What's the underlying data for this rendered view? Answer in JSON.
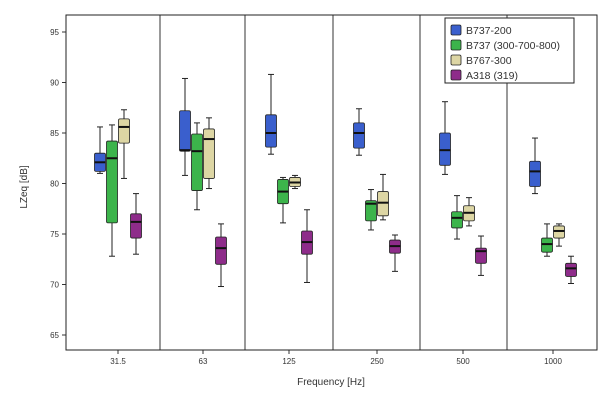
{
  "chart_data": {
    "type": "boxplot",
    "xlabel": "Frequency [Hz]",
    "ylabel": "LZeq [dB]",
    "ylim": [
      63,
      97
    ],
    "yticks": [
      65,
      70,
      75,
      80,
      85,
      90,
      95
    ],
    "categories": [
      "31.5",
      "63",
      "125",
      "250",
      "500",
      "1000"
    ],
    "legend_position": "top-right",
    "grid": false,
    "series": [
      {
        "name": "B737-200",
        "color": "#3a5fcd",
        "boxes": [
          {
            "min": 81.0,
            "q1": 81.2,
            "median": 82.1,
            "q3": 83.0,
            "max": 85.6
          },
          {
            "min": 80.8,
            "q1": 83.2,
            "median": 83.3,
            "q3": 87.2,
            "max": 90.4
          },
          {
            "min": 82.9,
            "q1": 83.6,
            "median": 85.0,
            "q3": 86.8,
            "max": 90.8
          },
          {
            "min": 82.8,
            "q1": 83.5,
            "median": 85.0,
            "q3": 86.0,
            "max": 87.4
          },
          {
            "min": 80.9,
            "q1": 81.8,
            "median": 83.3,
            "q3": 85.0,
            "max": 88.1
          },
          {
            "min": 79.0,
            "q1": 79.7,
            "median": 81.2,
            "q3": 82.2,
            "max": 84.5
          }
        ]
      },
      {
        "name": "B737 (300-700-800)",
        "color": "#3cb44b",
        "boxes": [
          {
            "min": 72.8,
            "q1": 76.1,
            "median": 82.5,
            "q3": 84.2,
            "max": 85.8
          },
          {
            "min": 77.4,
            "q1": 79.3,
            "median": 83.2,
            "q3": 84.9,
            "max": 86.0
          },
          {
            "min": 76.1,
            "q1": 78.0,
            "median": 79.2,
            "q3": 80.4,
            "max": 80.6
          },
          {
            "min": 75.4,
            "q1": 76.3,
            "median": 78.0,
            "q3": 78.3,
            "max": 79.4
          },
          {
            "min": 74.5,
            "q1": 75.6,
            "median": 76.6,
            "q3": 77.2,
            "max": 78.8
          },
          {
            "min": 72.8,
            "q1": 73.2,
            "median": 74.0,
            "q3": 74.6,
            "max": 76.0
          }
        ]
      },
      {
        "name": "B767-300",
        "color": "#ddd6a4",
        "boxes": [
          {
            "min": 80.5,
            "q1": 84.0,
            "median": 85.6,
            "q3": 86.4,
            "max": 87.3
          },
          {
            "min": 79.5,
            "q1": 80.5,
            "median": 84.4,
            "q3": 85.4,
            "max": 86.5
          },
          {
            "min": 79.5,
            "q1": 79.7,
            "median": 80.1,
            "q3": 80.6,
            "max": 80.8
          },
          {
            "min": 76.4,
            "q1": 76.8,
            "median": 78.1,
            "q3": 79.2,
            "max": 80.9
          },
          {
            "min": 75.8,
            "q1": 76.3,
            "median": 77.1,
            "q3": 77.8,
            "max": 78.6
          },
          {
            "min": 73.8,
            "q1": 74.6,
            "median": 75.3,
            "q3": 75.8,
            "max": 76.0
          }
        ]
      },
      {
        "name": "A318 (319)",
        "color": "#8e2c8a",
        "boxes": [
          {
            "min": 73.0,
            "q1": 74.6,
            "median": 76.2,
            "q3": 77.0,
            "max": 79.0
          },
          {
            "min": 69.8,
            "q1": 72.0,
            "median": 73.6,
            "q3": 74.7,
            "max": 76.0
          },
          {
            "min": 70.2,
            "q1": 73.0,
            "median": 74.2,
            "q3": 75.3,
            "max": 77.4
          },
          {
            "min": 71.3,
            "q1": 73.1,
            "median": 73.8,
            "q3": 74.4,
            "max": 74.9
          },
          {
            "min": 70.9,
            "q1": 72.1,
            "median": 73.3,
            "q3": 73.6,
            "max": 74.8
          },
          {
            "min": 70.1,
            "q1": 70.8,
            "median": 71.6,
            "q3": 72.1,
            "max": 72.8
          }
        ]
      }
    ]
  }
}
